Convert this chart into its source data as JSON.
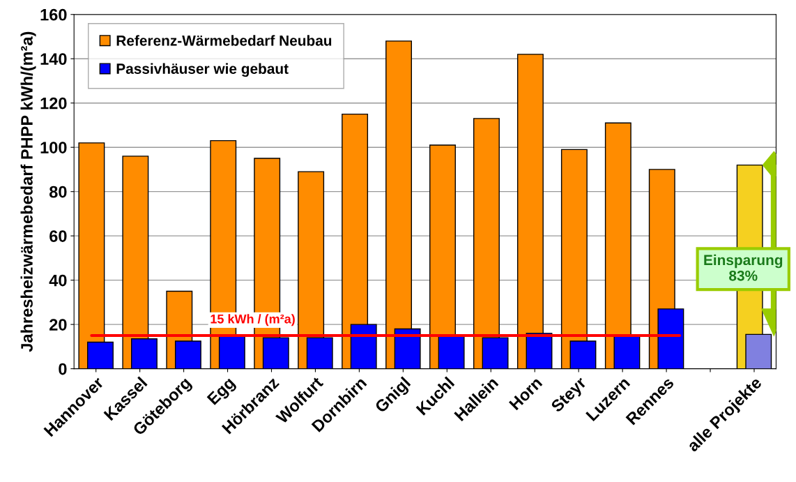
{
  "chart_data": {
    "type": "bar",
    "ylabel": "Jahresheizwärmebedarf PHPP kWh/(m²a)",
    "categories": [
      "Hannover",
      "Kassel",
      "Göteborg",
      "Egg",
      "Hörbranz",
      "Wolfurt",
      "Dornbirn",
      "Gnigl",
      "Kuchl",
      "Hallein",
      "Horn",
      "Steyr",
      "Luzern",
      "Rennes",
      null,
      "alle Projekte"
    ],
    "series": [
      {
        "name": "Referenz-Wärmebedarf Neubau",
        "color": "#ff8c00",
        "colors": [
          "#ff8c00",
          "#ff8c00",
          "#ff8c00",
          "#ff8c00",
          "#ff8c00",
          "#ff8c00",
          "#ff8c00",
          "#ff8c00",
          "#ff8c00",
          "#ff8c00",
          "#ff8c00",
          "#ff8c00",
          "#ff8c00",
          "#ff8c00",
          "#ff8c00",
          "#f5d020"
        ],
        "values": [
          102,
          96,
          35,
          103,
          95,
          89,
          115,
          148,
          101,
          113,
          142,
          99,
          111,
          90,
          null,
          92
        ]
      },
      {
        "name": "Passivhäuser wie gebaut",
        "color": "#0000ff",
        "colors": [
          "#0000ff",
          "#0000ff",
          "#0000ff",
          "#0000ff",
          "#0000ff",
          "#0000ff",
          "#0000ff",
          "#0000ff",
          "#0000ff",
          "#0000ff",
          "#0000ff",
          "#0000ff",
          "#0000ff",
          "#0000ff",
          "#0000ff",
          "#8080e0"
        ],
        "values": [
          12,
          13.5,
          12.5,
          15,
          14,
          14,
          20,
          18,
          15,
          14,
          16,
          12.5,
          15,
          27,
          null,
          15.5
        ]
      }
    ],
    "ylim": [
      0,
      160
    ],
    "yticks": [
      0,
      20,
      40,
      60,
      80,
      100,
      120,
      140,
      160
    ],
    "grid": "y",
    "legend": "top left",
    "ref_lines": [
      {
        "axis": "y",
        "value": 15,
        "label": "15 kWh / (m²a)",
        "color": "#ff0000"
      }
    ],
    "annotations": [
      "Einsparung\n83%"
    ]
  }
}
